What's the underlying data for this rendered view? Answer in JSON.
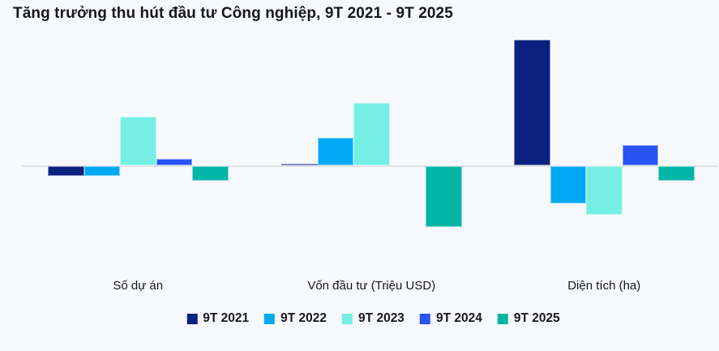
{
  "chart_data": {
    "type": "bar",
    "title": "Tăng trưởng thu hút đầu tư Công nghiệp, 9T 2021 - 9T 2025",
    "categories": [
      "Số dự án",
      "Vốn đầu tư (Triệu USD)",
      "Diện tích (ha)"
    ],
    "series": [
      {
        "name": "9T 2021",
        "color": "#0b2180",
        "values": [
          -12,
          1,
          155
        ]
      },
      {
        "name": "9T 2022",
        "color": "#00a9f4",
        "values": [
          -12,
          34,
          -46
        ]
      },
      {
        "name": "9T 2023",
        "color": "#75efe3",
        "values": [
          60,
          77,
          -60
        ]
      },
      {
        "name": "9T 2024",
        "color": "#2653f2",
        "values": [
          8,
          0,
          25
        ]
      },
      {
        "name": "9T 2025",
        "color": "#01b6a7",
        "values": [
          -18,
          -75,
          -18
        ]
      }
    ],
    "value_unit": "percent-growth (estimated from bar heights; axis unlabeled)",
    "ylim": [
      -80,
      160
    ],
    "grid": false,
    "baseline_color": "#e2e4e9",
    "background_color": "#f8f9fd",
    "legend_position": "bottom"
  }
}
